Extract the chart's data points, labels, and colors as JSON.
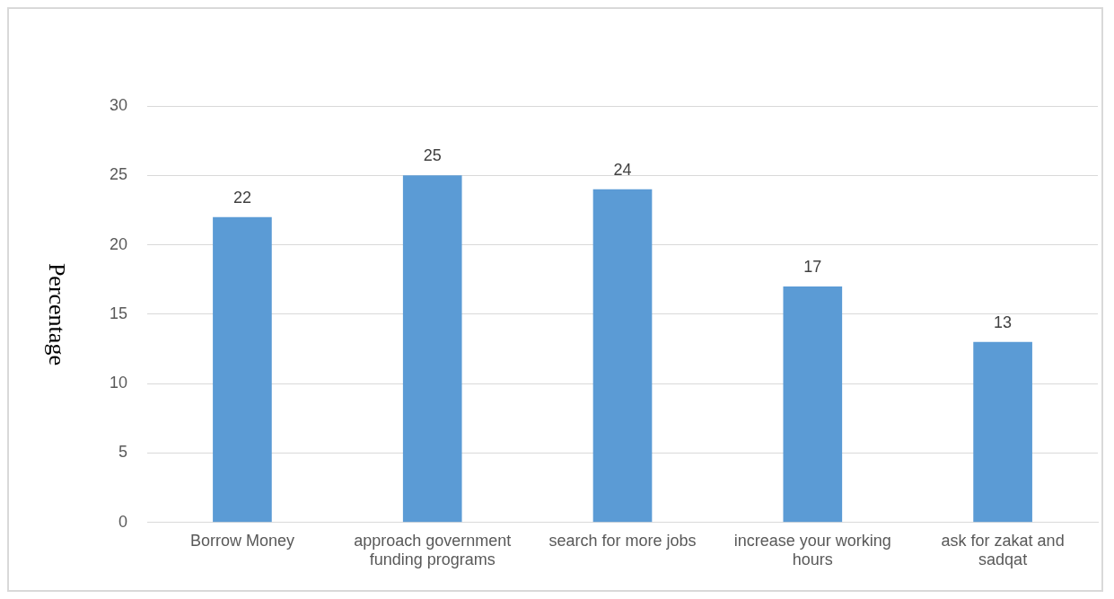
{
  "chart_data": {
    "type": "bar",
    "ylabel": "Percentage",
    "categories": [
      "Borrow Money",
      "approach government funding programs",
      "search for more jobs",
      "increase your working hours",
      "ask for zakat and sadqat"
    ],
    "values": [
      22,
      25,
      24,
      17,
      13
    ],
    "color": "#5b9bd5",
    "ylim": [
      0,
      30
    ],
    "yticks": [
      0,
      5,
      10,
      15,
      20,
      25,
      30
    ],
    "grid": "y",
    "data_labels": true,
    "legend": false
  }
}
